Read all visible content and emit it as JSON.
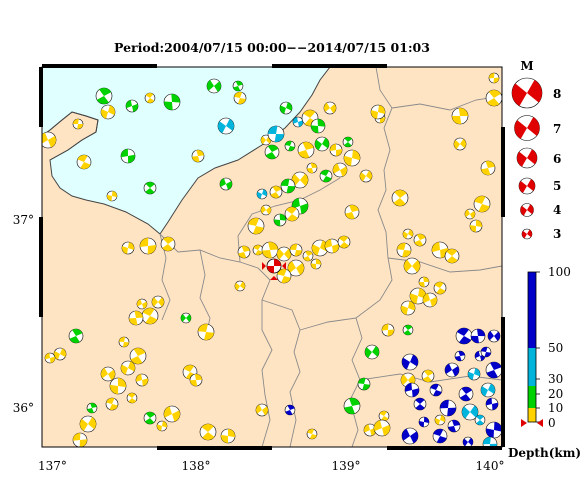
{
  "title": "Period:2004/07/15 00:00−−2014/07/15 01:03",
  "axes": {
    "x_ticks": [
      "137°",
      "138°",
      "139°",
      "140°"
    ],
    "y_ticks": [
      "37°",
      "36°"
    ]
  },
  "magnitude_legend": {
    "label": "M",
    "entries": [
      "8",
      "7",
      "6",
      "5",
      "4",
      "3"
    ]
  },
  "depth_legend": {
    "label": "Depth(km)",
    "ticks": [
      "100",
      "50",
      "30",
      "20",
      "10",
      "0"
    ],
    "colors": {
      "deep": "#0000c8",
      "mid": "#00b4dc",
      "shallow20": "#00d200",
      "shallow10": "#ffd200"
    }
  },
  "colors": {
    "sea": "#e0ffff",
    "land": "#ffe4c4",
    "border": "#888888",
    "main_event": "#e00000"
  }
}
